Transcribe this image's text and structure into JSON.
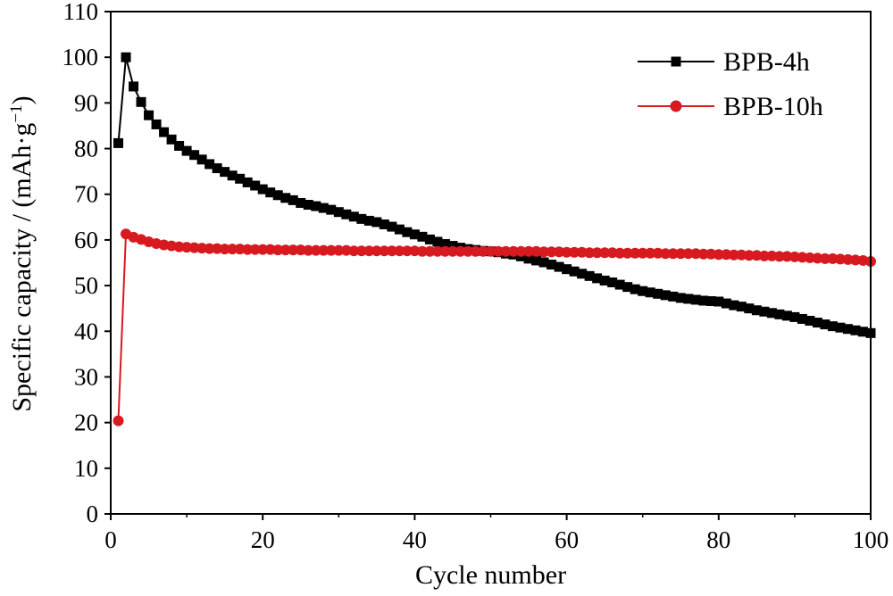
{
  "chart_data": {
    "type": "line",
    "title": "",
    "xlabel": "Cycle number",
    "ylabel_main": "Specific capacity / (mAh·g",
    "ylabel_sup": "−1",
    "ylabel_close": ")",
    "xlim": [
      0,
      100
    ],
    "ylim": [
      0,
      110
    ],
    "xticks": [
      0,
      20,
      40,
      60,
      80,
      100
    ],
    "yticks": [
      0,
      10,
      20,
      30,
      40,
      50,
      60,
      70,
      80,
      90,
      100,
      110
    ],
    "grid": false,
    "legend_position": "top-right",
    "series": [
      {
        "name": "BPB-4h",
        "color": "#000000",
        "marker": "square",
        "x": [
          1,
          2,
          3,
          4,
          5,
          6,
          7,
          8,
          9,
          10,
          11,
          12,
          13,
          14,
          15,
          16,
          17,
          18,
          19,
          20,
          21,
          22,
          23,
          24,
          25,
          26,
          27,
          28,
          29,
          30,
          31,
          32,
          33,
          34,
          35,
          36,
          37,
          38,
          39,
          40,
          41,
          42,
          43,
          44,
          45,
          46,
          47,
          48,
          49,
          50,
          51,
          52,
          53,
          54,
          55,
          56,
          57,
          58,
          59,
          60,
          61,
          62,
          63,
          64,
          65,
          66,
          67,
          68,
          69,
          70,
          71,
          72,
          73,
          74,
          75,
          76,
          77,
          78,
          79,
          80,
          81,
          82,
          83,
          84,
          85,
          86,
          87,
          88,
          89,
          90,
          91,
          92,
          93,
          94,
          95,
          96,
          97,
          98,
          99,
          100
        ],
        "y": [
          81.2,
          100.0,
          93.6,
          90.2,
          87.3,
          85.3,
          83.6,
          82.0,
          80.6,
          79.5,
          78.6,
          77.6,
          76.6,
          75.7,
          74.9,
          74.1,
          73.4,
          72.6,
          71.9,
          71.1,
          70.4,
          69.8,
          69.2,
          68.7,
          68.1,
          67.7,
          67.4,
          67.0,
          66.6,
          66.1,
          65.6,
          65.1,
          64.6,
          64.2,
          63.9,
          63.4,
          62.9,
          62.3,
          61.7,
          61.2,
          60.7,
          60.1,
          59.6,
          59.1,
          58.7,
          58.3,
          58.0,
          57.8,
          57.6,
          57.5,
          57.3,
          57.0,
          56.8,
          56.4,
          55.9,
          55.5,
          55.1,
          54.6,
          54.1,
          53.6,
          53.1,
          52.6,
          52.1,
          51.6,
          51.1,
          50.7,
          50.2,
          49.7,
          49.2,
          48.8,
          48.5,
          48.2,
          47.9,
          47.6,
          47.3,
          47.1,
          46.9,
          46.7,
          46.6,
          46.5,
          46.1,
          45.7,
          45.4,
          45.0,
          44.6,
          44.3,
          44.0,
          43.7,
          43.4,
          43.1,
          42.7,
          42.3,
          41.9,
          41.5,
          41.1,
          40.8,
          40.5,
          40.2,
          39.9,
          39.6
        ]
      },
      {
        "name": "BPB-10h",
        "color": "#d71920",
        "marker": "circle",
        "x": [
          1,
          2,
          3,
          4,
          5,
          6,
          7,
          8,
          9,
          10,
          11,
          12,
          13,
          14,
          15,
          16,
          17,
          18,
          19,
          20,
          21,
          22,
          23,
          24,
          25,
          26,
          27,
          28,
          29,
          30,
          31,
          32,
          33,
          34,
          35,
          36,
          37,
          38,
          39,
          40,
          41,
          42,
          43,
          44,
          45,
          46,
          47,
          48,
          49,
          50,
          51,
          52,
          53,
          54,
          55,
          56,
          57,
          58,
          59,
          60,
          61,
          62,
          63,
          64,
          65,
          66,
          67,
          68,
          69,
          70,
          71,
          72,
          73,
          74,
          75,
          76,
          77,
          78,
          79,
          80,
          81,
          82,
          83,
          84,
          85,
          86,
          87,
          88,
          89,
          90,
          91,
          92,
          93,
          94,
          95,
          96,
          97,
          98,
          99,
          100
        ],
        "y": [
          20.4,
          61.3,
          60.6,
          60.1,
          59.6,
          59.2,
          58.9,
          58.7,
          58.5,
          58.4,
          58.3,
          58.2,
          58.1,
          58.1,
          58.0,
          58.0,
          58.0,
          57.9,
          57.9,
          57.9,
          57.9,
          57.8,
          57.8,
          57.8,
          57.8,
          57.7,
          57.7,
          57.7,
          57.7,
          57.7,
          57.7,
          57.6,
          57.6,
          57.6,
          57.6,
          57.6,
          57.6,
          57.6,
          57.6,
          57.6,
          57.5,
          57.5,
          57.5,
          57.5,
          57.5,
          57.5,
          57.5,
          57.5,
          57.5,
          57.5,
          57.5,
          57.5,
          57.5,
          57.5,
          57.5,
          57.5,
          57.4,
          57.4,
          57.4,
          57.3,
          57.3,
          57.3,
          57.2,
          57.2,
          57.2,
          57.2,
          57.1,
          57.1,
          57.1,
          57.1,
          57.1,
          57.1,
          57.0,
          57.0,
          57.0,
          57.0,
          57.0,
          56.9,
          56.9,
          56.8,
          56.8,
          56.7,
          56.7,
          56.6,
          56.6,
          56.5,
          56.5,
          56.4,
          56.4,
          56.3,
          56.2,
          56.1,
          56.0,
          55.9,
          55.9,
          55.8,
          55.7,
          55.6,
          55.5,
          55.3
        ]
      }
    ]
  }
}
